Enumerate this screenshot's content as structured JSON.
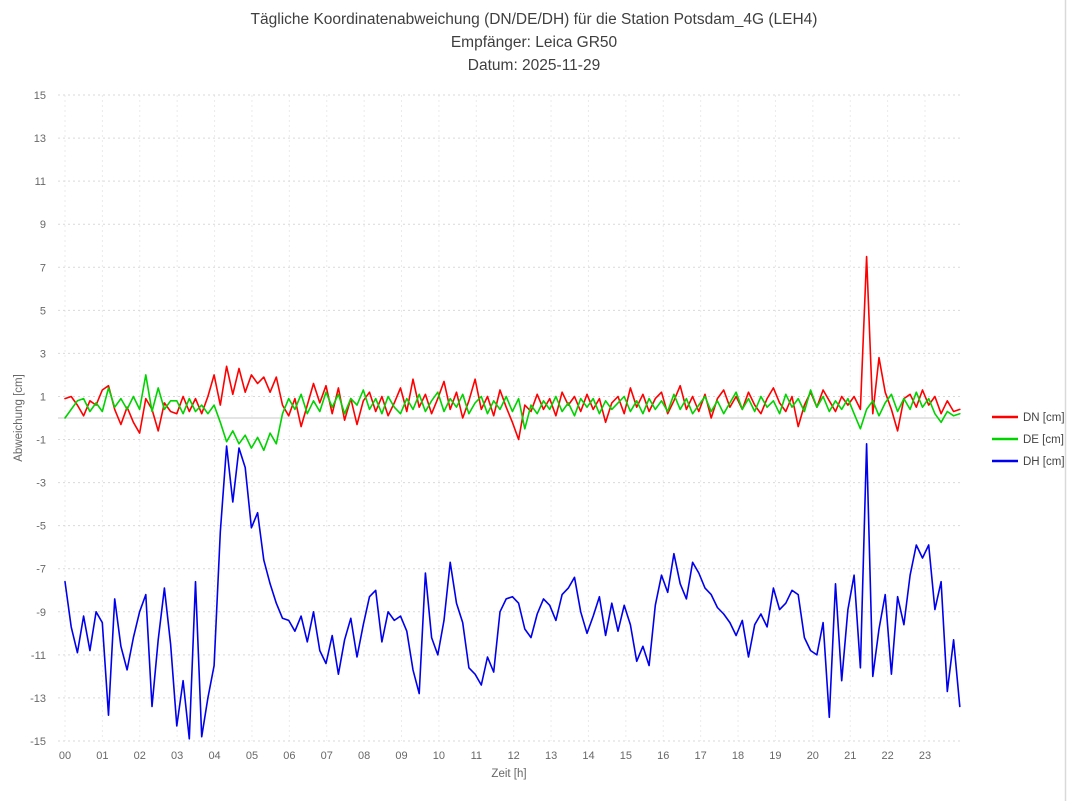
{
  "chart_data": {
    "type": "line",
    "title": "Tägliche Koordinatenabweichung (DN/DE/DH) für die Station Potsdam_4G (LEH4)",
    "subtitle": "Empfänger: Leica GR50",
    "date_line": "Datum: 2025-11-29",
    "xlabel": "Zeit [h]",
    "ylabel": "Abweichung [cm]",
    "xlim": [
      0,
      24
    ],
    "ylim": [
      -15,
      15
    ],
    "x_ticks": [
      "00",
      "01",
      "02",
      "03",
      "04",
      "05",
      "06",
      "07",
      "08",
      "09",
      "10",
      "11",
      "12",
      "13",
      "14",
      "15",
      "16",
      "17",
      "18",
      "19",
      "20",
      "21",
      "22",
      "23"
    ],
    "y_ticks": [
      15,
      13,
      11,
      9,
      7,
      5,
      3,
      1,
      -1,
      -3,
      -5,
      -7,
      -9,
      -11,
      -13,
      -15
    ],
    "grid": true,
    "zero_line": true,
    "legend_position": "right",
    "sampling_interval_minutes": 10,
    "x_start_hour": 0.0,
    "x_end_hour": 23.93,
    "series": [
      {
        "name": "DN [cm]",
        "color": "#ff0000",
        "values": [
          0.9,
          1.0,
          0.6,
          0.1,
          0.8,
          0.6,
          1.3,
          1.5,
          0.4,
          -0.3,
          0.5,
          -0.2,
          -0.7,
          0.9,
          0.4,
          -0.6,
          0.7,
          0.3,
          0.2,
          1.0,
          0.3,
          0.9,
          0.2,
          1.0,
          2.0,
          0.6,
          2.4,
          1.1,
          2.3,
          1.2,
          2.0,
          1.6,
          1.9,
          1.2,
          1.9,
          0.6,
          0.1,
          0.9,
          -0.4,
          0.6,
          1.6,
          0.7,
          1.5,
          0.2,
          1.4,
          -0.1,
          0.9,
          -0.3,
          0.8,
          1.2,
          0.3,
          1.0,
          0.1,
          0.7,
          1.4,
          0.3,
          1.8,
          0.5,
          1.1,
          0.2,
          0.9,
          1.7,
          0.4,
          1.2,
          0.0,
          0.8,
          1.8,
          0.4,
          1.0,
          0.1,
          1.3,
          0.5,
          -0.2,
          -1.0,
          0.6,
          0.3,
          1.1,
          0.4,
          0.9,
          0.1,
          1.2,
          0.6,
          1.0,
          0.3,
          1.1,
          0.4,
          0.9,
          -0.2,
          0.7,
          1.0,
          0.2,
          1.4,
          0.5,
          1.1,
          0.3,
          0.9,
          1.2,
          0.2,
          0.8,
          1.5,
          0.4,
          1.0,
          0.3,
          1.1,
          0.0,
          0.9,
          1.3,
          0.5,
          1.0,
          0.4,
          1.2,
          0.6,
          0.2,
          0.9,
          1.4,
          0.7,
          0.3,
          1.0,
          -0.4,
          0.6,
          1.2,
          0.5,
          1.3,
          0.8,
          0.3,
          1.0,
          0.6,
          1.0,
          0.4,
          7.5,
          0.2,
          2.8,
          1.2,
          0.4,
          -0.6,
          0.9,
          1.1,
          0.5,
          1.3,
          0.6,
          1.0,
          0.2,
          0.8,
          0.3,
          0.4
        ]
      },
      {
        "name": "DE [cm]",
        "color": "#00d300",
        "values": [
          0.0,
          0.4,
          0.8,
          0.9,
          0.3,
          0.7,
          0.3,
          1.4,
          0.5,
          0.9,
          0.4,
          1.0,
          0.4,
          2.0,
          0.3,
          1.4,
          0.4,
          0.8,
          0.8,
          0.2,
          0.9,
          0.3,
          0.6,
          0.2,
          0.6,
          -0.2,
          -1.1,
          -0.6,
          -1.2,
          -0.8,
          -1.4,
          -0.9,
          -1.5,
          -0.7,
          -1.2,
          0.2,
          0.9,
          0.4,
          1.1,
          0.2,
          0.8,
          0.3,
          1.2,
          0.5,
          1.1,
          0.2,
          0.9,
          0.6,
          1.3,
          0.4,
          0.9,
          0.2,
          1.0,
          0.5,
          0.2,
          0.9,
          0.4,
          1.1,
          0.3,
          0.8,
          1.2,
          0.3,
          0.9,
          0.5,
          1.1,
          0.2,
          0.7,
          1.0,
          0.2,
          0.8,
          0.4,
          1.0,
          0.3,
          0.9,
          -0.5,
          0.6,
          0.2,
          0.8,
          0.4,
          1.0,
          0.3,
          0.7,
          0.1,
          0.9,
          0.5,
          0.9,
          0.2,
          0.8,
          0.4,
          0.7,
          1.0,
          0.3,
          0.8,
          0.2,
          0.9,
          0.4,
          0.8,
          0.3,
          1.1,
          0.4,
          0.9,
          0.2,
          0.6,
          1.0,
          0.3,
          0.8,
          0.2,
          0.7,
          1.2,
          0.4,
          0.9,
          0.3,
          1.0,
          0.5,
          0.8,
          0.2,
          1.1,
          0.5,
          0.9,
          0.3,
          1.3,
          0.5,
          1.0,
          0.3,
          0.8,
          0.4,
          0.9,
          0.2,
          -0.5,
          0.4,
          0.8,
          0.1,
          0.7,
          1.1,
          0.3,
          0.9,
          0.4,
          1.2,
          0.5,
          0.9,
          0.2,
          -0.2,
          0.3,
          0.1,
          0.2
        ]
      },
      {
        "name": "DH [cm]",
        "color": "#0000ee",
        "values": [
          -7.6,
          -9.7,
          -10.9,
          -9.2,
          -10.8,
          -9.0,
          -9.5,
          -13.8,
          -8.4,
          -10.6,
          -11.7,
          -10.2,
          -9.0,
          -8.2,
          -13.4,
          -10.3,
          -7.9,
          -10.5,
          -14.3,
          -12.2,
          -14.9,
          -7.6,
          -14.8,
          -13.0,
          -11.5,
          -5.3,
          -1.3,
          -3.9,
          -1.4,
          -2.3,
          -5.1,
          -4.4,
          -6.6,
          -7.7,
          -8.6,
          -9.3,
          -9.4,
          -9.9,
          -9.2,
          -10.4,
          -9.0,
          -10.8,
          -11.4,
          -10.1,
          -11.9,
          -10.3,
          -9.3,
          -11.1,
          -9.6,
          -8.3,
          -8.0,
          -10.4,
          -9.0,
          -9.4,
          -9.2,
          -9.9,
          -11.7,
          -12.8,
          -7.2,
          -10.2,
          -11.0,
          -9.4,
          -6.7,
          -8.6,
          -9.5,
          -11.6,
          -11.9,
          -12.4,
          -11.1,
          -11.8,
          -9.0,
          -8.4,
          -8.3,
          -8.6,
          -9.8,
          -10.2,
          -9.1,
          -8.4,
          -8.7,
          -9.4,
          -8.2,
          -7.9,
          -7.4,
          -9.0,
          -10.0,
          -9.2,
          -8.3,
          -10.1,
          -8.6,
          -9.9,
          -8.7,
          -9.6,
          -11.3,
          -10.6,
          -11.5,
          -8.7,
          -7.3,
          -8.1,
          -6.3,
          -7.7,
          -8.4,
          -6.7,
          -7.2,
          -7.9,
          -8.2,
          -8.8,
          -9.1,
          -9.5,
          -10.1,
          -9.4,
          -11.1,
          -9.6,
          -9.1,
          -9.7,
          -7.9,
          -8.9,
          -8.6,
          -8.0,
          -8.2,
          -10.2,
          -10.8,
          -11.0,
          -9.5,
          -13.9,
          -7.7,
          -12.2,
          -8.9,
          -7.3,
          -11.6,
          -1.2,
          -12.0,
          -9.8,
          -8.2,
          -11.9,
          -8.3,
          -9.6,
          -7.3,
          -5.9,
          -6.5,
          -5.9,
          -8.9,
          -7.6,
          -12.7,
          -10.3,
          -13.4
        ]
      }
    ],
    "annotations": {
      "dn_spike": {
        "hour": 21.4,
        "value": 7.5
      },
      "dh_spike": {
        "hour": 21.4,
        "value": -1.2
      },
      "dh_deep_min": {
        "hour": 3.3,
        "value": -15.0
      }
    },
    "colors": {
      "grid_dotted": "#d9d9d9",
      "grid_vertical": "#ebebeb",
      "zero_line": "#c9c9c9",
      "tick_text": "#686868",
      "title_text": "#3f3f3f",
      "legend_text": "#444444",
      "frame_right_edge": "#d9d9d9"
    }
  }
}
